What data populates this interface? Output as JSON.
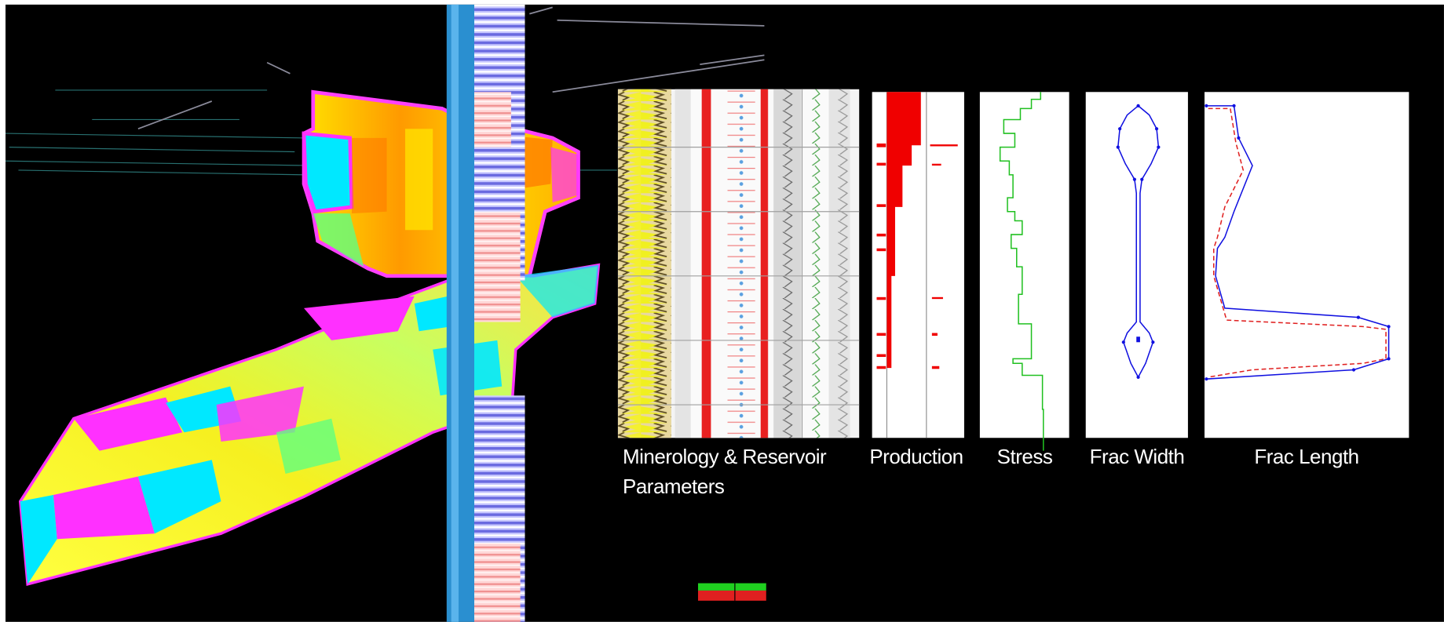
{
  "panels": [
    {
      "label": "Minerology & Reservoir Parameters"
    },
    {
      "label": "Production"
    },
    {
      "label": "Stress"
    },
    {
      "label": "Frac Width"
    },
    {
      "label": "Frac Length"
    }
  ]
}
